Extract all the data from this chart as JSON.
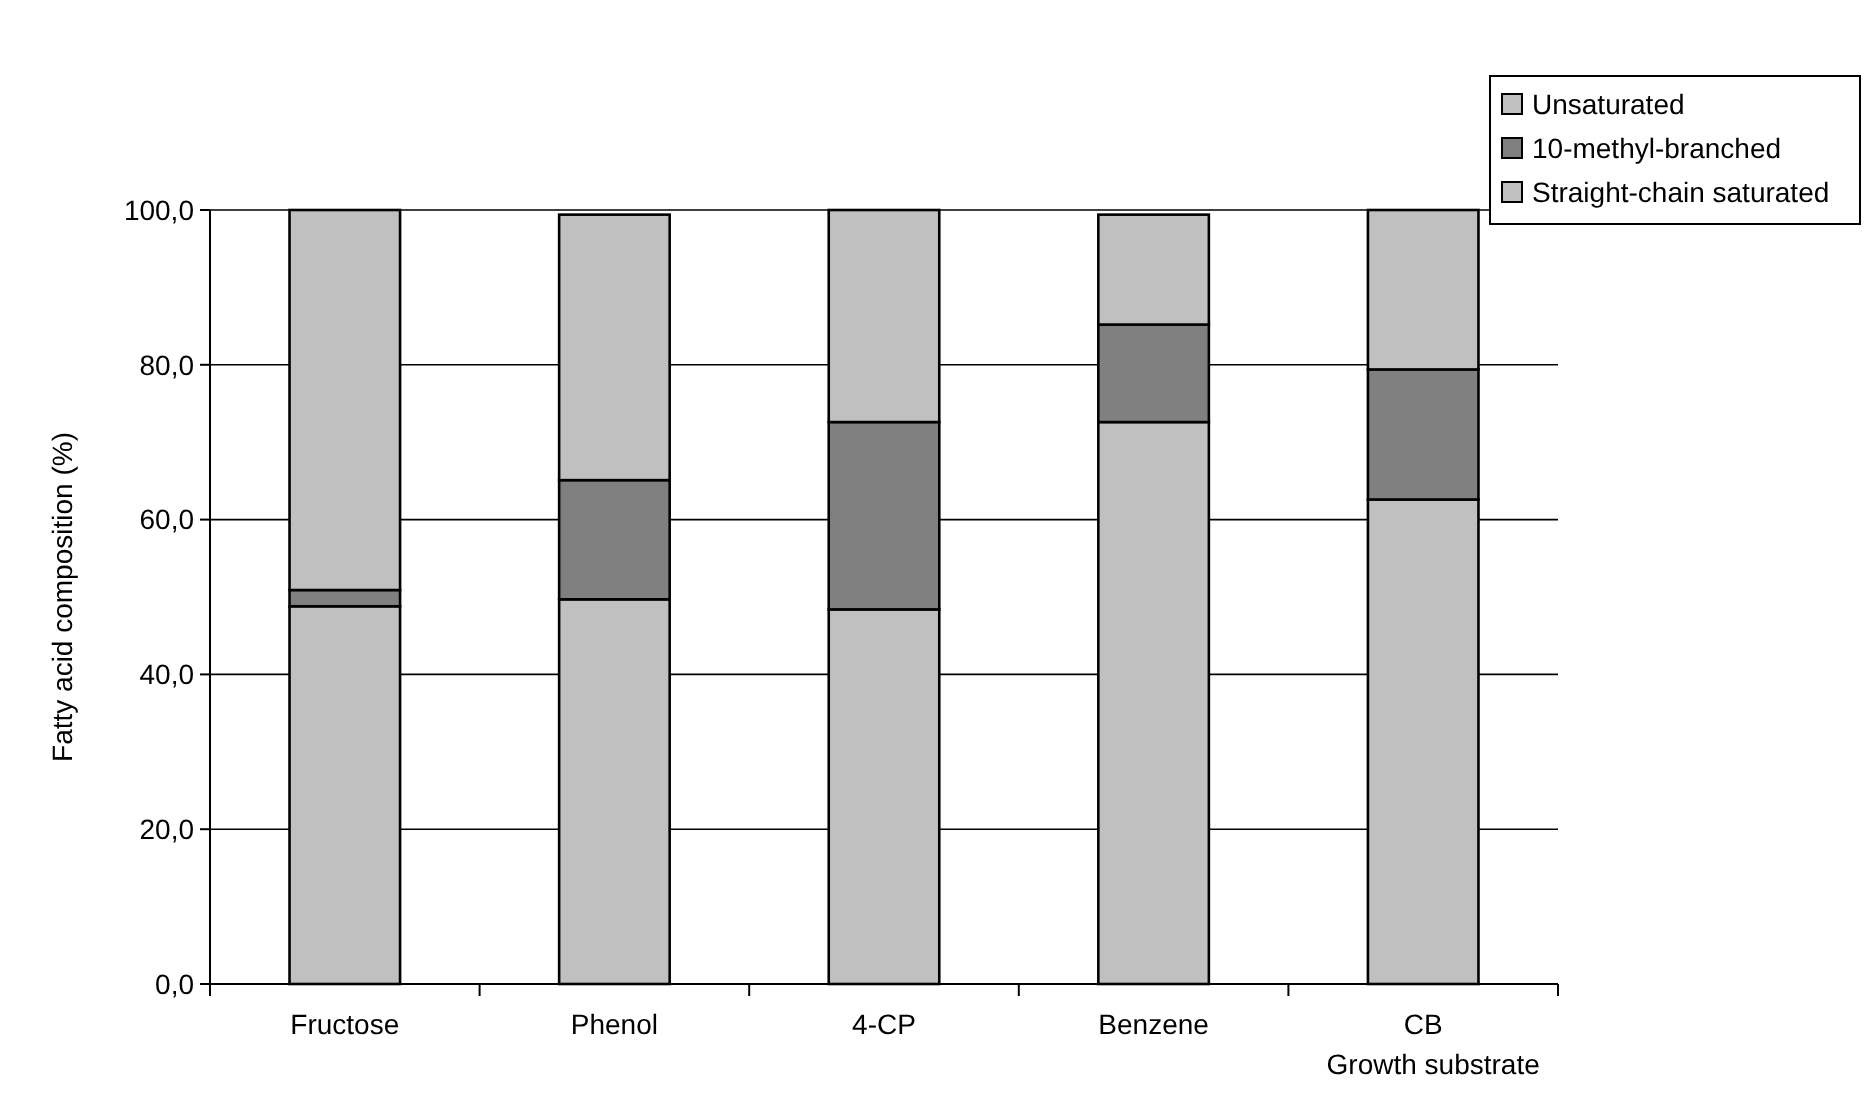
{
  "chart_data": {
    "type": "bar",
    "stacked": true,
    "xlabel": "Growth substrate",
    "ylabel": "Fatty acid composition (%)",
    "categories": [
      "Fructose",
      "Phenol",
      "4-CP",
      "Benzene",
      "CB"
    ],
    "series": [
      {
        "name": "Straight-chain saturated",
        "color": "#c0c0c0",
        "values": [
          48.8,
          49.7,
          48.4,
          72.6,
          62.6
        ]
      },
      {
        "name": "10-methyl-branched",
        "color": "#808080",
        "values": [
          2.1,
          15.4,
          24.2,
          12.6,
          16.8
        ]
      },
      {
        "name": "Unsaturated",
        "color": "#c0c0c0",
        "values": [
          49.1,
          34.3,
          27.4,
          14.2,
          20.6
        ]
      }
    ],
    "ylim": [
      0,
      100
    ],
    "yticks": [
      {
        "value": 0,
        "label": "0,0"
      },
      {
        "value": 20,
        "label": "20,0"
      },
      {
        "value": 40,
        "label": "40,0"
      },
      {
        "value": 60,
        "label": "60,0"
      },
      {
        "value": 80,
        "label": "80,0"
      },
      {
        "value": 100,
        "label": "100,0"
      }
    ],
    "grid": "y",
    "legend": "top right"
  }
}
